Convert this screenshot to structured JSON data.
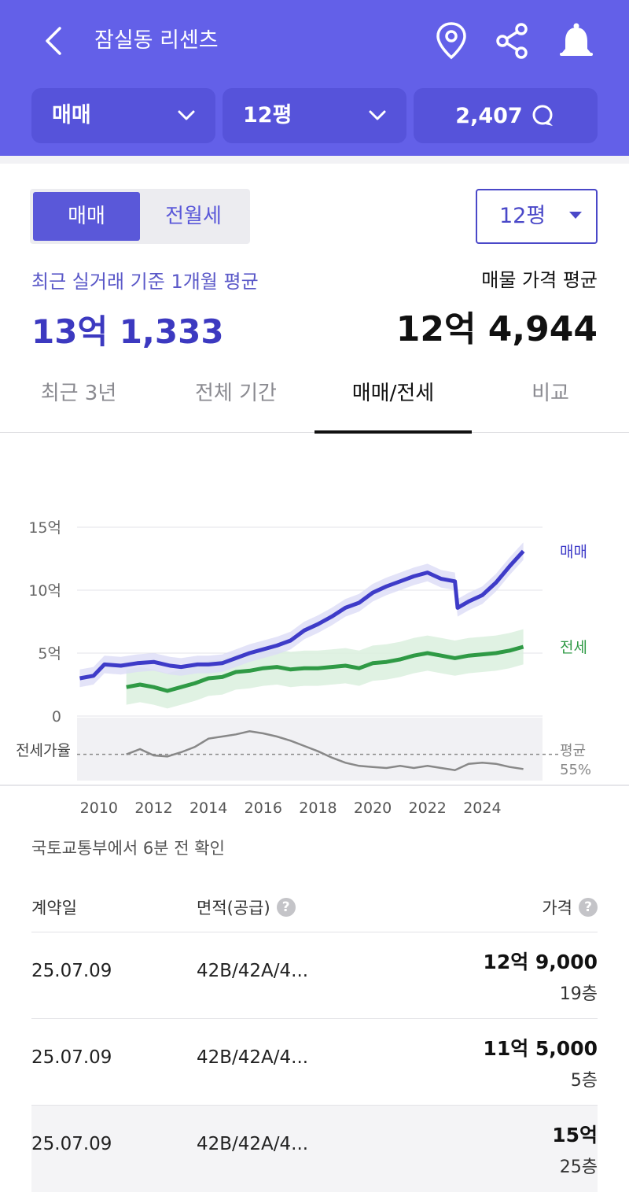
{
  "header": {
    "title": "잠실동 리센츠",
    "deal_type": "매매",
    "size": "12평",
    "comments_count": "2,407"
  },
  "toggle": {
    "active": "매매",
    "inactive": "전월세"
  },
  "size_select": "12평",
  "recent_avg": {
    "label": "최근 실거래 기준 1개월 평균",
    "value": "13억 1,333"
  },
  "listing_avg": {
    "label": "매물 가격 평균",
    "value": "12억 4,944"
  },
  "tabs": [
    {
      "label": "최근 3년",
      "active": false
    },
    {
      "label": "전체 기간",
      "active": false
    },
    {
      "label": "매매/전세",
      "active": true
    },
    {
      "label": "비교",
      "active": false
    }
  ],
  "chart_data": {
    "type": "line",
    "y_ticks": [
      "0",
      "5억",
      "10억",
      "15억"
    ],
    "ylim": [
      0,
      15
    ],
    "x_ticks": [
      "2010",
      "2012",
      "2014",
      "2016",
      "2018",
      "2020",
      "2022",
      "2024"
    ],
    "xlim": [
      2009.2,
      2026.2
    ],
    "series": [
      {
        "name": "매매",
        "color": "#3e3bc8",
        "x": [
          2009.3,
          2009.8,
          2010.2,
          2010.8,
          2011.4,
          2012.0,
          2012.6,
          2013.0,
          2013.6,
          2014.0,
          2014.5,
          2015.0,
          2015.5,
          2016.0,
          2016.5,
          2017.0,
          2017.5,
          2018.0,
          2018.5,
          2019.0,
          2019.5,
          2020.0,
          2020.5,
          2021.0,
          2021.5,
          2022.0,
          2022.5,
          2023.0,
          2023.1,
          2023.5,
          2024.0,
          2024.5,
          2025.0,
          2025.5
        ],
        "values": [
          3.0,
          3.2,
          4.1,
          4.0,
          4.2,
          4.3,
          4.0,
          3.9,
          4.1,
          4.1,
          4.2,
          4.6,
          5.0,
          5.3,
          5.6,
          6.0,
          6.8,
          7.3,
          7.9,
          8.6,
          9.0,
          9.8,
          10.3,
          10.7,
          11.1,
          11.4,
          10.9,
          10.7,
          8.6,
          9.1,
          9.6,
          10.6,
          11.9,
          13.1
        ]
      },
      {
        "name": "전세",
        "color": "#2f9a45",
        "x": [
          2011.0,
          2011.5,
          2012.0,
          2012.5,
          2013.0,
          2013.5,
          2014.0,
          2014.5,
          2015.0,
          2015.5,
          2016.0,
          2016.5,
          2017.0,
          2017.5,
          2018.0,
          2018.5,
          2019.0,
          2019.5,
          2020.0,
          2020.5,
          2021.0,
          2021.5,
          2022.0,
          2022.5,
          2023.0,
          2023.5,
          2024.0,
          2024.5,
          2025.0,
          2025.5
        ],
        "values": [
          2.3,
          2.5,
          2.3,
          2.0,
          2.3,
          2.6,
          3.0,
          3.1,
          3.5,
          3.6,
          3.8,
          3.9,
          3.7,
          3.8,
          3.8,
          3.9,
          4.0,
          3.8,
          4.2,
          4.3,
          4.5,
          4.8,
          5.0,
          4.8,
          4.6,
          4.8,
          4.9,
          5.0,
          5.2,
          5.5
        ]
      }
    ],
    "ratio": {
      "label": "전세가율",
      "avg_label": "평균",
      "avg_value": "55%",
      "x": [
        2011.0,
        2011.5,
        2012.0,
        2012.5,
        2013.0,
        2013.5,
        2014.0,
        2014.5,
        2015.0,
        2015.5,
        2016.0,
        2016.5,
        2017.0,
        2017.5,
        2018.0,
        2018.5,
        2019.0,
        2019.5,
        2020.0,
        2020.5,
        2021.0,
        2021.5,
        2022.0,
        2022.5,
        2023.0,
        2023.5,
        2024.0,
        2024.5,
        2025.0,
        2025.5
      ],
      "values": [
        55,
        60,
        54,
        53,
        57,
        62,
        70,
        72,
        74,
        77,
        75,
        72,
        68,
        63,
        58,
        52,
        47,
        44,
        43,
        42,
        44,
        42,
        44,
        42,
        40,
        46,
        47,
        46,
        43,
        41
      ],
      "avg": 55
    }
  },
  "source": "국토교통부에서 6분 전 확인",
  "table": {
    "col_date": "계약일",
    "col_area": "면적(공급)",
    "col_price": "가격",
    "rows": [
      {
        "date": "25.07.09",
        "area": "42B/42A/4...",
        "price": "12억 9,000",
        "floor": "19층"
      },
      {
        "date": "25.07.09",
        "area": "42B/42A/4...",
        "price": "11억 5,000",
        "floor": "5층"
      },
      {
        "date": "25.07.09",
        "area": "42B/42A/4...",
        "price": "15억",
        "floor": "25층"
      }
    ]
  }
}
